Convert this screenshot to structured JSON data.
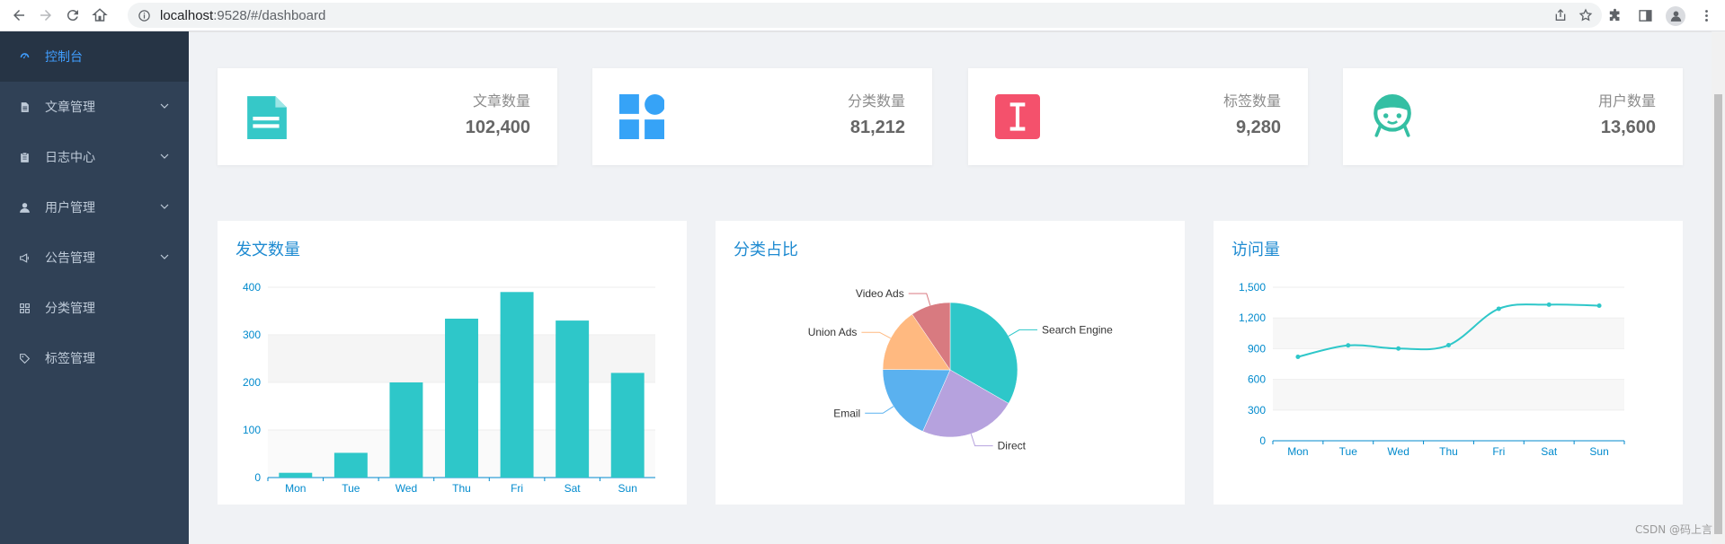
{
  "browser": {
    "url_host": "localhost",
    "url_rest": ":9528/#/dashboard"
  },
  "sidebar": {
    "items": [
      {
        "label": "控制台",
        "icon": "dashboard-icon",
        "active": true,
        "has_arrow": false
      },
      {
        "label": "文章管理",
        "icon": "document-icon",
        "active": false,
        "has_arrow": true
      },
      {
        "label": "日志中心",
        "icon": "clipboard-icon",
        "active": false,
        "has_arrow": true
      },
      {
        "label": "用户管理",
        "icon": "user-icon",
        "active": false,
        "has_arrow": true
      },
      {
        "label": "公告管理",
        "icon": "megaphone-icon",
        "active": false,
        "has_arrow": true
      },
      {
        "label": "分类管理",
        "icon": "grid-icon",
        "active": false,
        "has_arrow": false
      },
      {
        "label": "标签管理",
        "icon": "tag-icon",
        "active": false,
        "has_arrow": false
      }
    ]
  },
  "stats": [
    {
      "label": "文章数量",
      "value": "102,400",
      "icon": "article-icon",
      "color": "#36c8c8"
    },
    {
      "label": "分类数量",
      "value": "81,212",
      "icon": "category-icon",
      "color": "#36a3f7"
    },
    {
      "label": "标签数量",
      "value": "9,280",
      "icon": "tag-i-icon",
      "color": "#f4516c"
    },
    {
      "label": "用户数量",
      "value": "13,600",
      "icon": "user-face-icon",
      "color": "#34bfa3"
    }
  ],
  "charts": {
    "bar_title": "发文数量",
    "pie_title": "分类占比",
    "line_title": "访问量"
  },
  "chart_data": [
    {
      "type": "bar",
      "title": "发文数量",
      "categories": [
        "Mon",
        "Tue",
        "Wed",
        "Thu",
        "Fri",
        "Sat",
        "Sun"
      ],
      "values": [
        10,
        52,
        200,
        334,
        390,
        330,
        220
      ],
      "ylim": [
        0,
        400
      ],
      "yticks": [
        0,
        100,
        200,
        300,
        400
      ],
      "color": "#2ec7c9",
      "grid": true
    },
    {
      "type": "pie",
      "title": "分类占比",
      "series": [
        {
          "name": "Search Engine",
          "value": 1048,
          "color": "#2ec7c9"
        },
        {
          "name": "Direct",
          "value": 735,
          "color": "#b6a2de"
        },
        {
          "name": "Email",
          "value": 580,
          "color": "#5ab1ef"
        },
        {
          "name": "Union Ads",
          "value": 484,
          "color": "#ffb980"
        },
        {
          "name": "Video Ads",
          "value": 300,
          "color": "#d87a80"
        }
      ]
    },
    {
      "type": "line",
      "title": "访问量",
      "categories": [
        "Mon",
        "Tue",
        "Wed",
        "Thu",
        "Fri",
        "Sat",
        "Sun"
      ],
      "values": [
        820,
        932,
        901,
        934,
        1290,
        1330,
        1320
      ],
      "ylim": [
        0,
        1500
      ],
      "yticks": [
        0,
        300,
        600,
        900,
        "1,200",
        "1,500"
      ],
      "yticks_values": [
        0,
        300,
        600,
        900,
        1200,
        1500
      ],
      "color": "#2ec7c9",
      "smooth": true
    }
  ],
  "watermark": "CSDN @码上言"
}
